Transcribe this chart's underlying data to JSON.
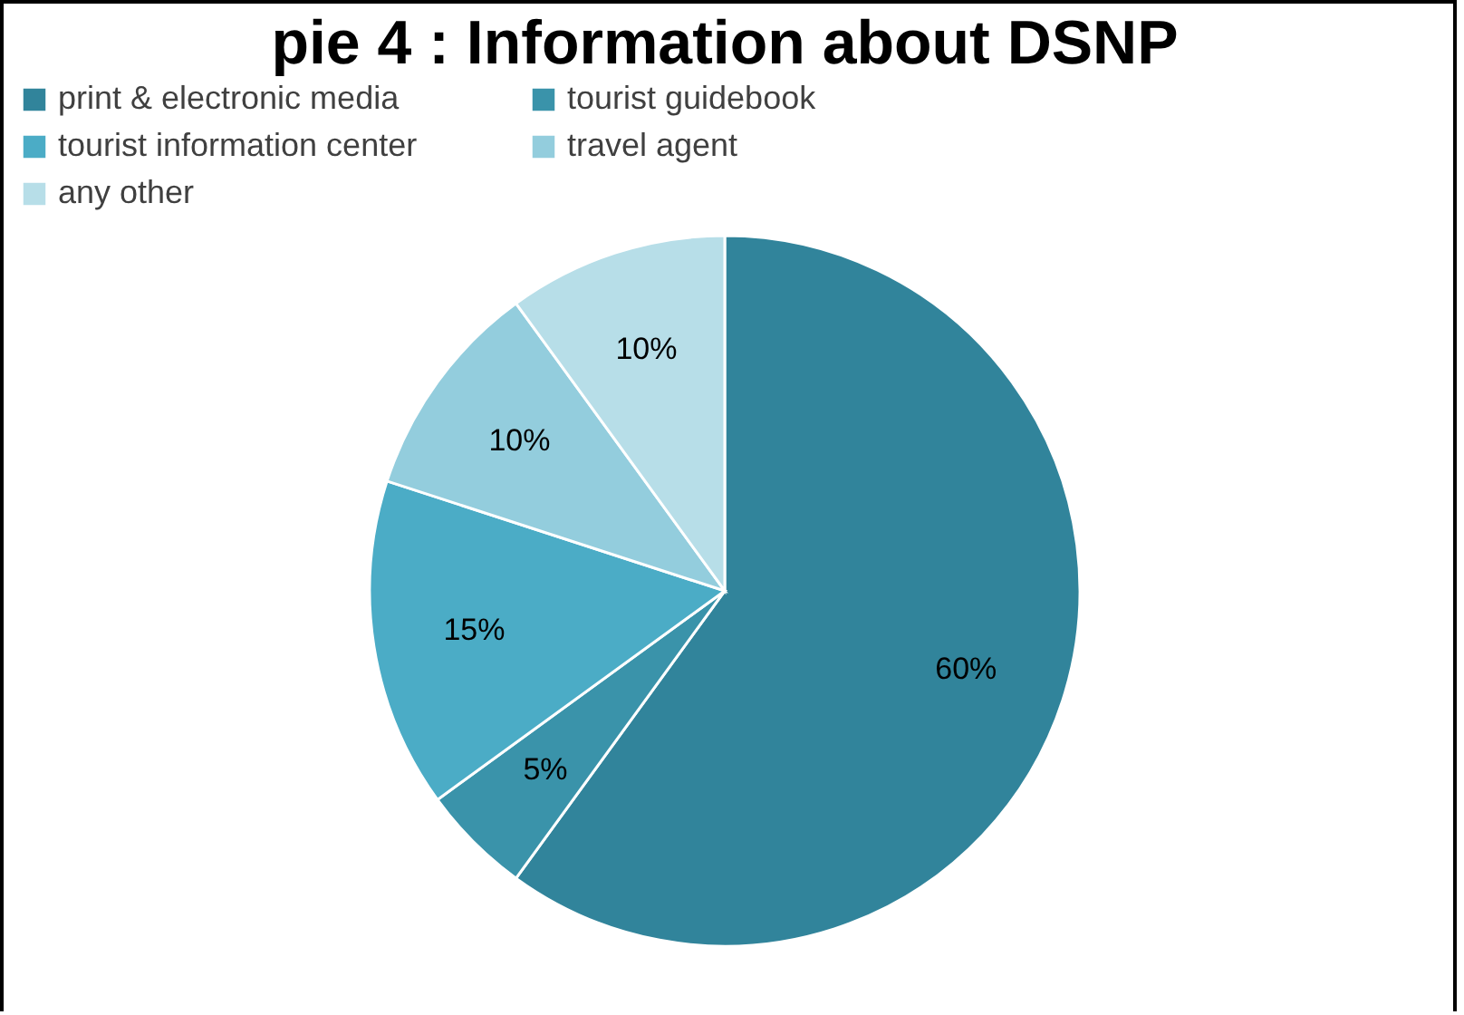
{
  "chart_data": {
    "type": "pie",
    "title": "pie 4 : Information about DSNP",
    "categories": [
      "print & electronic media",
      "tourist guidebook",
      "tourist information center",
      "travel agent",
      "any other"
    ],
    "values": [
      60,
      5,
      15,
      10,
      10
    ],
    "colors": [
      "#31849b",
      "#3a93aa",
      "#4bacc6",
      "#93cddd",
      "#b7dee8"
    ],
    "value_labels": [
      "60%",
      "5%",
      "15%",
      "10%",
      "10%"
    ],
    "legend": "top left"
  }
}
